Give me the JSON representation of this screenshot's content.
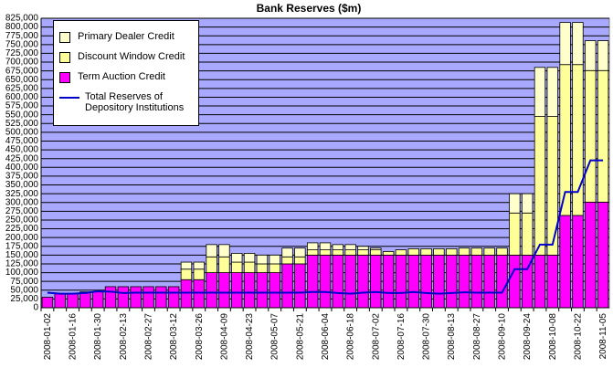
{
  "chart_data": {
    "type": "stacked-bar-line",
    "title": "Bank Reserves ($m)",
    "x": [
      "2008-01-02",
      null,
      "2008-01-16",
      null,
      "2008-01-30",
      null,
      "2008-02-13",
      null,
      "2008-02-27",
      null,
      "2008-03-12",
      null,
      "2008-03-26",
      null,
      "2008-04-09",
      null,
      "2008-04-23",
      null,
      "2008-05-07",
      null,
      "2008-05-21",
      null,
      "2008-06-04",
      null,
      "2008-06-18",
      null,
      "2008-07-02",
      null,
      "2008-07-16",
      null,
      "2008-07-30",
      null,
      "2008-08-13",
      null,
      "2008-08-27",
      null,
      "2008-09-10",
      null,
      "2008-09-24",
      null,
      "2008-10-08",
      null,
      "2008-10-22",
      null,
      "2008-11-05"
    ],
    "series": [
      {
        "name": "Primary Dealer Credit",
        "color": "#ffffcc",
        "values": [
          0,
          0,
          0,
          0,
          0,
          0,
          0,
          0,
          0,
          0,
          0,
          20000,
          20000,
          35000,
          35000,
          25000,
          25000,
          25000,
          25000,
          25000,
          25000,
          20000,
          20000,
          15000,
          15000,
          10000,
          5000,
          0,
          0,
          0,
          0,
          0,
          0,
          0,
          0,
          0,
          0,
          55000,
          55000,
          140000,
          140000,
          120000,
          120000,
          85000,
          85000
        ]
      },
      {
        "name": "Discount Window Credit",
        "color": "#ffff99",
        "values": [
          0,
          0,
          0,
          0,
          0,
          0,
          0,
          0,
          0,
          0,
          0,
          30000,
          30000,
          45000,
          45000,
          30000,
          30000,
          25000,
          25000,
          20000,
          20000,
          15000,
          15000,
          15000,
          15000,
          15000,
          15000,
          10000,
          15000,
          18000,
          18000,
          18000,
          18000,
          20000,
          20000,
          20000,
          20000,
          120000,
          120000,
          395000,
          395000,
          430000,
          430000,
          375000,
          375000
        ]
      },
      {
        "name": "Term Auction Credit",
        "color": "#ff00ff",
        "values": [
          30000,
          40000,
          40000,
          45000,
          45000,
          60000,
          60000,
          60000,
          60000,
          60000,
          60000,
          80000,
          80000,
          100000,
          100000,
          100000,
          100000,
          100000,
          100000,
          125000,
          125000,
          150000,
          150000,
          150000,
          150000,
          150000,
          150000,
          150000,
          150000,
          150000,
          150000,
          150000,
          150000,
          150000,
          150000,
          150000,
          150000,
          150000,
          150000,
          150000,
          150000,
          263000,
          263000,
          301000,
          301000
        ]
      },
      {
        "name": "Total Reserves of Depository Institutions",
        "color": "#0000cc",
        "type": "line",
        "values": [
          43000,
          40000,
          40000,
          42000,
          47000,
          46000,
          42000,
          43000,
          43000,
          43000,
          43000,
          43000,
          43000,
          43000,
          43000,
          43000,
          43000,
          43000,
          43000,
          43000,
          43000,
          45000,
          45000,
          42000,
          40000,
          43000,
          45000,
          42000,
          42000,
          45000,
          42000,
          40000,
          42000,
          44000,
          43000,
          43000,
          43000,
          110000,
          110000,
          180000,
          180000,
          330000,
          330000,
          420000,
          420000
        ]
      }
    ],
    "ylim": [
      0,
      825000
    ],
    "yticks": [
      0,
      {
        "value": 25000,
        "label": "25,000"
      },
      {
        "value": 50000,
        "label": "50,000"
      },
      {
        "value": 75000,
        "label": "75,000"
      },
      {
        "value": 100000,
        "label": "100,000"
      },
      {
        "value": 125000,
        "label": "125,000"
      },
      {
        "value": 150000,
        "label": "150,000"
      },
      {
        "value": 175000,
        "label": "175,000"
      },
      {
        "value": 200000,
        "label": "200,000"
      },
      {
        "value": 225000,
        "label": "225,000"
      },
      {
        "value": 250000,
        "label": "250,000"
      },
      {
        "value": 275000,
        "label": "275,000"
      },
      {
        "value": 300000,
        "label": "300,000"
      },
      {
        "value": 325000,
        "label": "325,000"
      },
      {
        "value": 350000,
        "label": "350,000"
      },
      {
        "value": 375000,
        "label": "375,000"
      },
      {
        "value": 400000,
        "label": "400,000"
      },
      {
        "value": 425000,
        "label": "425,000"
      },
      {
        "value": 450000,
        "label": "450,000"
      },
      {
        "value": 475000,
        "label": "475,000"
      },
      {
        "value": 500000,
        "label": "500,000"
      },
      {
        "value": 525000,
        "label": "525,000"
      },
      {
        "value": 550000,
        "label": "550,000"
      },
      {
        "value": 575000,
        "label": "575,000"
      },
      {
        "value": 600000,
        "label": "600,000"
      },
      {
        "value": 625000,
        "label": "625,000"
      },
      {
        "value": 650000,
        "label": "650,000"
      },
      {
        "value": 675000,
        "label": "675,000"
      },
      {
        "value": 700000,
        "label": "700,000"
      },
      {
        "value": 725000,
        "label": "725,000"
      },
      {
        "value": 750000,
        "label": "750,000"
      },
      {
        "value": 775000,
        "label": "775,000"
      },
      {
        "value": 800000,
        "label": "800,000"
      },
      {
        "value": 825000,
        "label": "825,000"
      }
    ],
    "grid": true,
    "background": "#a8a8ff",
    "legend": "upper left"
  }
}
